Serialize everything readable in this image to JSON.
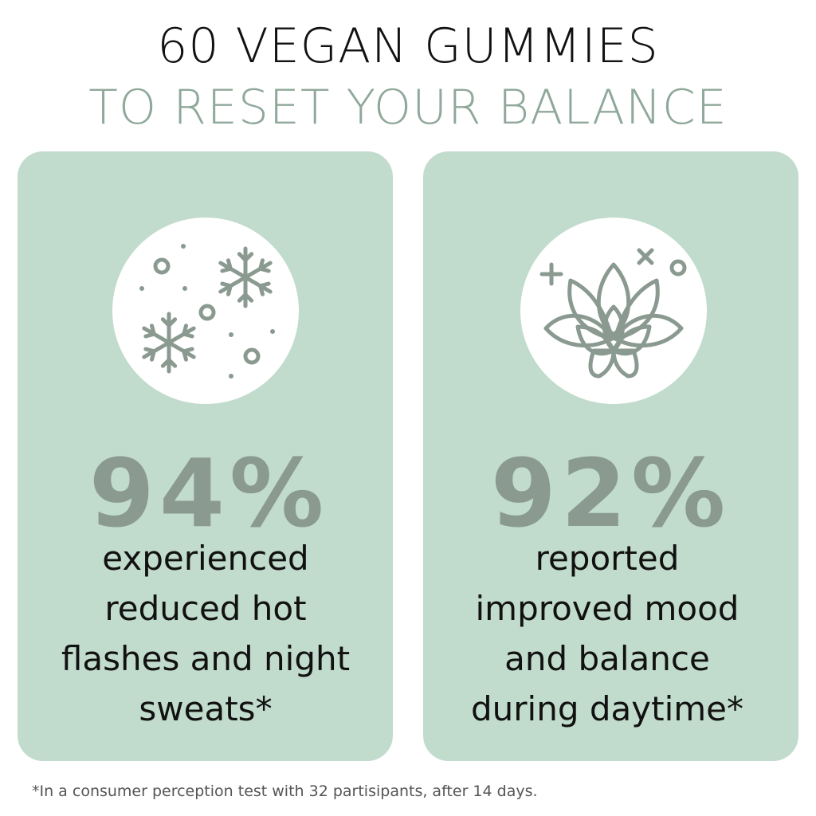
{
  "header": {
    "title": "60 VEGAN GUMMIES",
    "subtitle": "TO RESET YOUR BALANCE"
  },
  "cards": [
    {
      "stat": "94%",
      "lines": [
        "experienced",
        "reduced hot",
        "flashes and night",
        "sweats*"
      ]
    },
    {
      "stat": "92%",
      "lines": [
        "reported",
        "improved mood",
        "and balance",
        "during daytime*"
      ]
    }
  ],
  "footnote": "*In a consumer perception test with 32 partisipants, after 14 days."
}
